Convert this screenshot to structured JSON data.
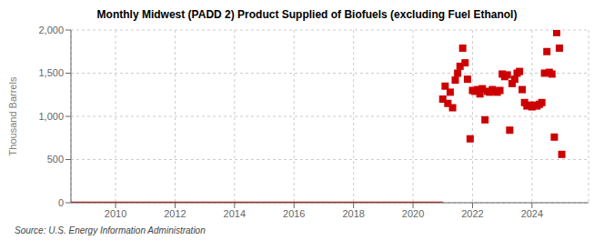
{
  "chart_data": {
    "type": "scatter",
    "title": "Monthly Midwest (PADD 2) Product Supplied of Biofuels (excluding Fuel Ethanol)",
    "y_label": "Thousand Barrels",
    "annotations": [
      "Source: U.S. Energy Information Administration"
    ],
    "xlim": [
      2008.5,
      2025.9
    ],
    "ylim": [
      0,
      2000
    ],
    "xticks": [
      2010,
      2012,
      2014,
      2016,
      2018,
      2020,
      2022,
      2024
    ],
    "yticks": [
      0,
      500,
      {
        "value": 1000,
        "label": "1,000"
      },
      {
        "value": 1500,
        "label": "1,500"
      },
      {
        "value": 2000,
        "label": "2,000"
      }
    ],
    "grid": true,
    "series": [
      {
        "type": "line",
        "color": "#cc0000",
        "x": [
          2008.5,
          2021.0
        ],
        "values": [
          0,
          0
        ]
      },
      {
        "type": "scatter",
        "color": "#cc0000",
        "marker": "square",
        "x": [
          2021.0,
          2021.08,
          2021.17,
          2021.25,
          2021.33,
          2021.42,
          2021.5,
          2021.58,
          2021.67,
          2021.75,
          2021.83,
          2021.92,
          2022.0,
          2022.08,
          2022.17,
          2022.25,
          2022.33,
          2022.42,
          2022.5,
          2022.58,
          2022.67,
          2022.75,
          2022.83,
          2022.92,
          2023.0,
          2023.08,
          2023.17,
          2023.25,
          2023.33,
          2023.42,
          2023.5,
          2023.58,
          2023.67,
          2023.75,
          2023.83,
          2023.92,
          2024.0,
          2024.08,
          2024.17,
          2024.25,
          2024.33,
          2024.42,
          2024.5,
          2024.58,
          2024.67,
          2024.75,
          2024.83,
          2024.92,
          2025.0
        ],
        "values": [
          1200,
          1350,
          1150,
          1280,
          1100,
          1420,
          1500,
          1580,
          1790,
          1620,
          1430,
          740,
          1300,
          1290,
          1310,
          1260,
          1320,
          960,
          1290,
          1280,
          1310,
          1290,
          1280,
          1300,
          1490,
          1460,
          1480,
          840,
          1380,
          1430,
          1500,
          1520,
          1310,
          1160,
          1120,
          1130,
          1110,
          1130,
          1120,
          1140,
          1160,
          1500,
          1750,
          1510,
          1490,
          760,
          1970,
          1790,
          560
        ]
      }
    ]
  }
}
